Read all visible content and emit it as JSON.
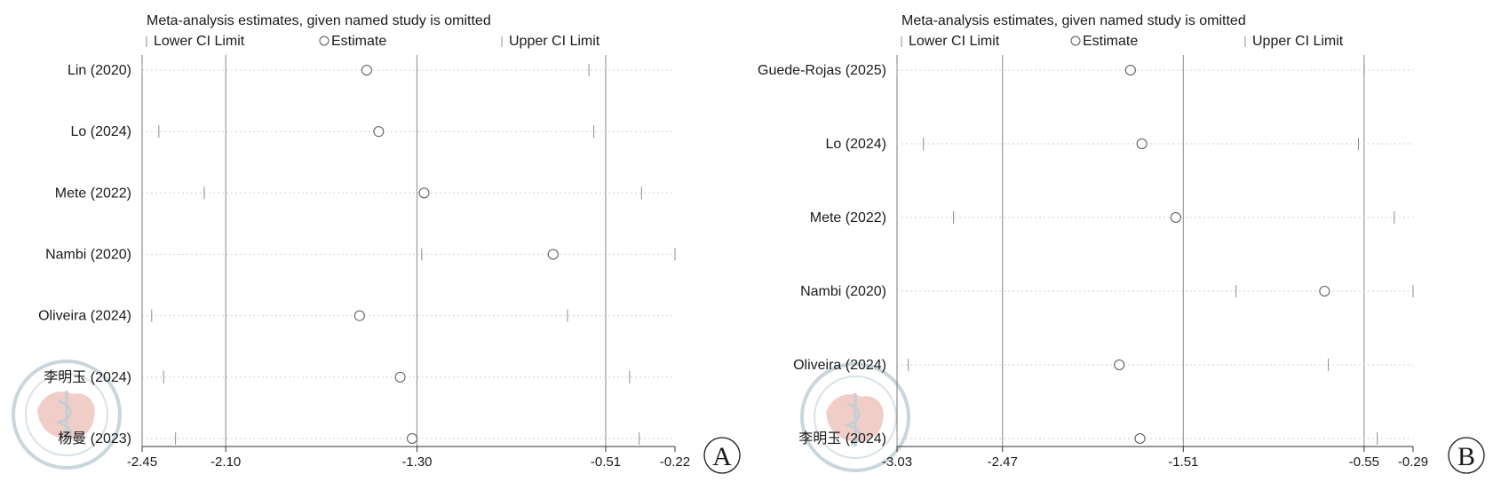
{
  "chart_data": [
    {
      "type": "forest",
      "panel_label": "A",
      "title": "Meta-analysis estimates, given named study is omitted",
      "legend": {
        "lower": "Lower CI Limit",
        "estimate": "Estimate",
        "upper": "Upper CI Limit"
      },
      "xlim": [
        -2.45,
        -0.22
      ],
      "xticks": [
        -2.45,
        -2.1,
        -1.3,
        -0.51,
        -0.22
      ],
      "xtick_labels": [
        "-2.45",
        "-2.10",
        "-1.30",
        "-0.51",
        "-0.22"
      ],
      "reference_lines": [
        -2.1,
        -1.3,
        -0.51
      ],
      "studies": [
        {
          "label": "Lin (2020)",
          "lower": -2.45,
          "estimate": -1.51,
          "upper": -0.58
        },
        {
          "label": "Lo (2024)",
          "lower": -2.38,
          "estimate": -1.46,
          "upper": -0.56
        },
        {
          "label": "Mete (2022)",
          "lower": -2.19,
          "estimate": -1.27,
          "upper": -0.36
        },
        {
          "label": "Nambi (2020)",
          "lower": -1.28,
          "estimate": -0.73,
          "upper": -0.22
        },
        {
          "label": "Oliveira (2024)",
          "lower": -2.41,
          "estimate": -1.54,
          "upper": -0.67
        },
        {
          "label": "李明玉 (2024)",
          "lower": -2.36,
          "estimate": -1.37,
          "upper": -0.41
        },
        {
          "label": "杨曼 (2023)",
          "lower": -2.31,
          "estimate": -1.32,
          "upper": -0.37
        }
      ]
    },
    {
      "type": "forest",
      "panel_label": "B",
      "title": "Meta-analysis estimates, given named study is omitted",
      "legend": {
        "lower": "Lower CI Limit",
        "estimate": "Estimate",
        "upper": "Upper CI Limit"
      },
      "xlim": [
        -3.03,
        -0.29
      ],
      "xticks": [
        -3.03,
        -2.47,
        -1.51,
        -0.55,
        -0.29
      ],
      "xtick_labels": [
        "-3.03",
        "-2.47",
        "-1.51",
        "-0.55",
        "-0.29"
      ],
      "reference_lines": [
        -2.47,
        -1.51,
        -0.55
      ],
      "studies": [
        {
          "label": "Guede-Rojas (2025)",
          "lower": -3.03,
          "estimate": -1.79,
          "upper": -0.55
        },
        {
          "label": "Lo (2024)",
          "lower": -2.89,
          "estimate": -1.73,
          "upper": -0.58
        },
        {
          "label": "Mete (2022)",
          "lower": -2.73,
          "estimate": -1.55,
          "upper": -0.39
        },
        {
          "label": "Nambi (2020)",
          "lower": -1.23,
          "estimate": -0.76,
          "upper": -0.29
        },
        {
          "label": "Oliveira (2024)",
          "lower": -2.97,
          "estimate": -1.85,
          "upper": -0.74
        },
        {
          "label": "李明玉 (2024)",
          "lower": -3.03,
          "estimate": -1.74,
          "upper": -0.48
        }
      ]
    }
  ]
}
